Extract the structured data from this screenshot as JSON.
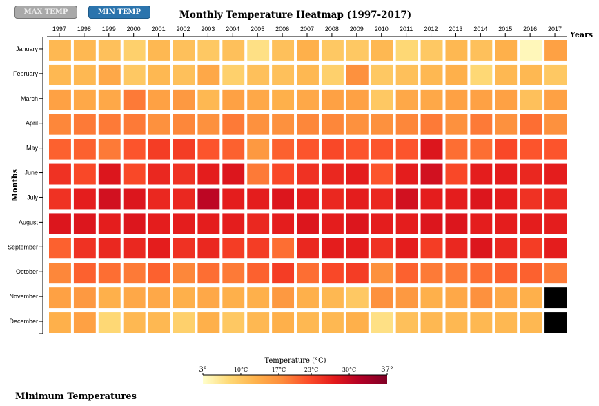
{
  "buttons": {
    "max_label": "MAX TEMP",
    "min_label": "MIN TEMP"
  },
  "subtitle": "Minimum Temperatures",
  "legend": {
    "title": "Temperature (°C)",
    "ticks": [
      "3°",
      "10°C",
      "17°C",
      "23°C",
      "30°C",
      "37°"
    ],
    "min": 3,
    "max": 37,
    "colors": [
      "#ffffcc",
      "#fed976",
      "#feb24c",
      "#fd8d3c",
      "#fc4e2a",
      "#e31a1c",
      "#b10026",
      "#800026"
    ]
  },
  "chart_data": {
    "type": "heatmap",
    "title": "Monthly Temperature Heatmap (1997-2017)",
    "xlabel": "Years",
    "ylabel": "Months",
    "x": [
      "1997",
      "1998",
      "1999",
      "2000",
      "2001",
      "2002",
      "2003",
      "2004",
      "2005",
      "2006",
      "2007",
      "2008",
      "2009",
      "2010",
      "2011",
      "2012",
      "2013",
      "2014",
      "2015",
      "2016",
      "2017"
    ],
    "y": [
      "January",
      "February",
      "March",
      "April",
      "May",
      "June",
      "July",
      "August",
      "September",
      "October",
      "November",
      "December"
    ],
    "values": [
      [
        12,
        12,
        11,
        9,
        12,
        11,
        10,
        11,
        7,
        11,
        13,
        10,
        10,
        12,
        8,
        10,
        12,
        11,
        13,
        4,
        15
      ],
      [
        12,
        12,
        14,
        10,
        12,
        11,
        14,
        9,
        11,
        11,
        12,
        9,
        17,
        10,
        11,
        12,
        13,
        8,
        12,
        12,
        10
      ],
      [
        15,
        14,
        14,
        19,
        15,
        16,
        12,
        15,
        14,
        13,
        14,
        15,
        15,
        10,
        14,
        14,
        15,
        15,
        15,
        11,
        15
      ],
      [
        18,
        19,
        19,
        19,
        17,
        18,
        17,
        19,
        17,
        17,
        18,
        18,
        17,
        17,
        18,
        19,
        17,
        19,
        17,
        20,
        17
      ],
      [
        21,
        21,
        19,
        22,
        24,
        24,
        22,
        21,
        16,
        21,
        22,
        23,
        22,
        22,
        22,
        28,
        20,
        20,
        23,
        22,
        22
      ],
      [
        25,
        23,
        28,
        23,
        26,
        25,
        27,
        28,
        19,
        23,
        25,
        26,
        27,
        22,
        27,
        29,
        23,
        27,
        27,
        26,
        27
      ],
      [
        25,
        27,
        29,
        28,
        26,
        26,
        31,
        27,
        27,
        28,
        27,
        26,
        27,
        26,
        29,
        27,
        27,
        28,
        27,
        25,
        26
      ],
      [
        28,
        28,
        27,
        28,
        27,
        27,
        27,
        27,
        26,
        27,
        28,
        27,
        28,
        27,
        27,
        28,
        28,
        27,
        27,
        27,
        27
      ],
      [
        21,
        25,
        26,
        26,
        27,
        25,
        26,
        24,
        24,
        20,
        26,
        27,
        27,
        25,
        27,
        24,
        26,
        28,
        26,
        24,
        27
      ],
      [
        18,
        21,
        20,
        19,
        21,
        18,
        20,
        19,
        21,
        24,
        20,
        23,
        24,
        17,
        21,
        19,
        19,
        20,
        21,
        21,
        19
      ],
      [
        15,
        16,
        13,
        14,
        14,
        13,
        14,
        13,
        13,
        16,
        13,
        12,
        10,
        17,
        16,
        13,
        14,
        17,
        14,
        13,
        null
      ],
      [
        13,
        15,
        8,
        12,
        12,
        9,
        13,
        10,
        12,
        13,
        12,
        12,
        13,
        7,
        11,
        12,
        12,
        12,
        12,
        12,
        null
      ]
    ]
  }
}
